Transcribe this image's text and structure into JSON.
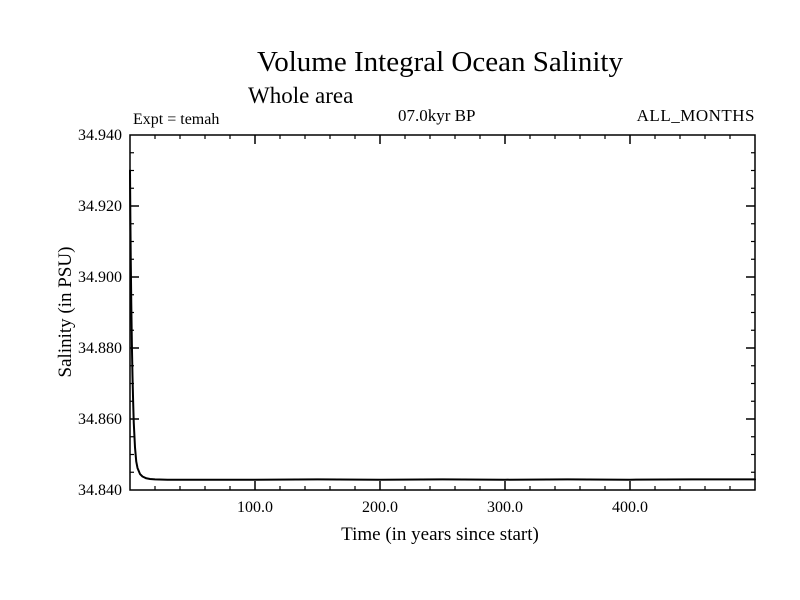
{
  "annotations": {
    "expt": "Expt = temah",
    "time_bp": "07.0kyr BP",
    "months": "ALL_MONTHS"
  },
  "chart_data": {
    "type": "line",
    "title": "Volume Integral Ocean Salinity",
    "subtitle": "Whole area",
    "xlabel": "Time (in years since start)",
    "ylabel": "Salinity (in PSU)",
    "xlim": [
      0,
      500
    ],
    "ylim": [
      34.84,
      34.94
    ],
    "x_major_ticks": [
      100,
      200,
      300,
      400
    ],
    "x_tick_labels": [
      "100.0",
      "200.0",
      "300.0",
      "400.0"
    ],
    "x_minor_step": 20,
    "y_major_ticks": [
      34.84,
      34.86,
      34.88,
      34.9,
      34.92,
      34.94
    ],
    "y_tick_labels": [
      "34.840",
      "34.860",
      "34.880",
      "34.900",
      "34.920",
      "34.940"
    ],
    "y_minor_step": 0.005,
    "grid": false,
    "legend": "none",
    "background": "#ffffff",
    "line_color": "#000000",
    "series": [
      {
        "name": "volume-integral-salinity",
        "x": [
          0,
          0.3,
          0.6,
          1,
          1.5,
          2,
          2.5,
          3,
          4,
          5,
          6,
          8,
          10,
          13,
          16,
          20,
          30,
          50,
          75,
          100,
          150,
          200,
          250,
          300,
          350,
          400,
          450,
          500
        ],
        "y": [
          34.93,
          34.916,
          34.905,
          34.893,
          34.881,
          34.872,
          34.865,
          34.859,
          34.852,
          34.848,
          34.8462,
          34.8445,
          34.8438,
          34.8433,
          34.8431,
          34.843,
          34.8429,
          34.8429,
          34.8429,
          34.8429,
          34.843,
          34.8429,
          34.843,
          34.8429,
          34.843,
          34.8429,
          34.843,
          34.843
        ]
      }
    ]
  }
}
